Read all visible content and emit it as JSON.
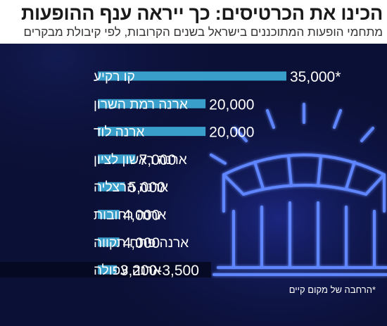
{
  "title": "הכינו את הכרטיסים: כך ייראה ענף ההופעות",
  "subtitle": "מתחמי הופעות המתוכננים בישראל בשנים הקרובות, לפי קיבולת מבקרים",
  "footnote": "*הרחבה של מקום קיים",
  "colors": {
    "background": "#0b1036",
    "bar": "#3a9ecb",
    "text": "#ffffff",
    "stadium_glow": "#2b5cff"
  },
  "icons": [
    "stadium-icon"
  ],
  "chart_data": {
    "type": "bar",
    "orientation": "horizontal",
    "categories": [
      "קו רקיע",
      "ארנה רמת השרון",
      "ארנה לוד",
      "ארנה ראשון לציון",
      "ארנה הרצליה",
      "ארנה רחובות",
      "ארנה פתח תקווה",
      "ארנה עפולה"
    ],
    "values": [
      35000,
      20000,
      20000,
      7000,
      5000,
      4000,
      4000,
      3500
    ],
    "range_low": [
      null,
      null,
      null,
      null,
      null,
      null,
      null,
      3200
    ],
    "labels": [
      "35,000*",
      "20,000",
      "20,000",
      "7,000",
      "5,000",
      "4,000",
      "4,000",
      "3,200-3,500"
    ],
    "xlim": [
      0,
      35000
    ],
    "grid": false,
    "legend": "none"
  }
}
